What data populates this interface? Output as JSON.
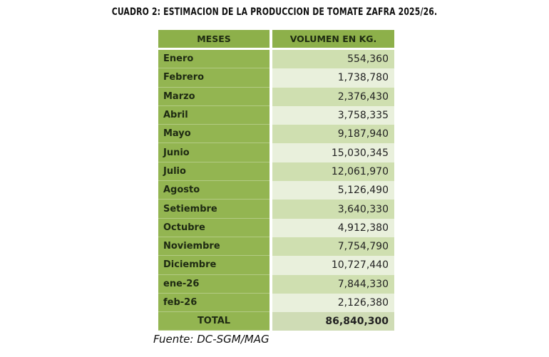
{
  "title": "CUADRO 2: ESTIMACION DE LA PRODUCCION DE TOMATE ZAFRA 2025/26.",
  "table": {
    "headers": [
      "MESES",
      "VOLUMEN EN KG."
    ],
    "rows": [
      [
        "Enero",
        "554,360"
      ],
      [
        "Febrero",
        "1,738,780"
      ],
      [
        "Marzo",
        "2,376,430"
      ],
      [
        "Abril",
        "3,758,335"
      ],
      [
        "Mayo",
        "9,187,940"
      ],
      [
        "Junio",
        "15,030,345"
      ],
      [
        "Julio",
        "12,061,970"
      ],
      [
        "Agosto",
        "5,126,490"
      ],
      [
        "Setiembre",
        "3,640,330"
      ],
      [
        "Octubre",
        "4,912,380"
      ],
      [
        "Noviembre",
        "7,754,790"
      ],
      [
        "Diciembre",
        "10,727,440"
      ],
      [
        "ene-26",
        "7,844,330"
      ],
      [
        "feb-26",
        "2,126,380"
      ]
    ],
    "total": [
      "TOTAL",
      "86,840,300"
    ]
  },
  "source": "Fuente: DC-SGM/MAG",
  "colors": {
    "header": "#8db04a",
    "month_column": "#93b551",
    "band_dark": "#cfdfb0",
    "band_light": "#e9f0dc"
  }
}
